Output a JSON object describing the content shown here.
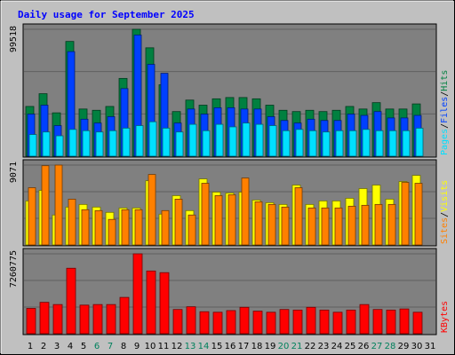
{
  "title": "Daily usage for September 2025",
  "colors": {
    "background": "#c0c0c0",
    "panel": "#808080",
    "title": "#0000ff",
    "hits": "#008040",
    "files": "#0040ff",
    "pages": "#00e0ff",
    "visits": "#ffff00",
    "sites": "#ff8000",
    "kbytes": "#ff0000",
    "weekday_label": "#000000",
    "weekend_label": "#00805c"
  },
  "chart_data": [
    {
      "type": "bar",
      "name": "hits-files-pages",
      "ymax_label": "99518",
      "ymax": 99518,
      "legend": [
        "Pages",
        "/",
        "Files",
        "/",
        "Hits"
      ],
      "legend_colors": [
        "#00e0ff",
        "#000000",
        "#0040ff",
        "#000000",
        "#008040"
      ],
      "series": [
        {
          "name": "Hits",
          "values": [
            39000,
            49000,
            34000,
            90000,
            37000,
            36000,
            39000,
            61000,
            99518,
            85000,
            56000,
            35000,
            44000,
            40000,
            45000,
            46000,
            46000,
            45000,
            40000,
            36000,
            35000,
            36000,
            35000,
            36000,
            39000,
            37000,
            42000,
            37000,
            37000,
            41000
          ]
        },
        {
          "name": "Files",
          "values": [
            33000,
            40000,
            24000,
            82000,
            29000,
            26000,
            31000,
            53000,
            95000,
            72000,
            65000,
            26000,
            37000,
            33000,
            38000,
            38000,
            37000,
            37000,
            31000,
            28000,
            26000,
            29000,
            28000,
            28000,
            33000,
            32000,
            35000,
            30000,
            30000,
            32000
          ]
        },
        {
          "name": "Pages",
          "values": [
            17000,
            19000,
            16000,
            21000,
            20000,
            19000,
            20000,
            22000,
            24000,
            27000,
            22000,
            19000,
            25000,
            20000,
            25000,
            23000,
            26000,
            25000,
            24000,
            20000,
            21000,
            20000,
            19000,
            20000,
            20000,
            21000,
            20000,
            20000,
            20000,
            22000
          ]
        }
      ]
    },
    {
      "type": "bar",
      "name": "visits-sites",
      "ymax_label": "9071",
      "ymax": 9071,
      "legend": [
        "Sites",
        "/",
        "Visits"
      ],
      "legend_colors": [
        "#ff8000",
        "#000000",
        "#ffff00"
      ],
      "series": [
        {
          "name": "Visits",
          "values": [
            5000,
            6200,
            3400,
            4300,
            4600,
            4300,
            3700,
            4200,
            4200,
            7300,
            3500,
            5600,
            3900,
            7500,
            6000,
            5900,
            6000,
            5100,
            4800,
            4600,
            6800,
            4600,
            5000,
            5000,
            5300,
            6400,
            6800,
            5200,
            7200,
            7900
          ]
        },
        {
          "name": "Sites",
          "values": [
            6500,
            9000,
            9071,
            5200,
            4000,
            3900,
            2900,
            4000,
            4000,
            8000,
            3900,
            5200,
            3400,
            7000,
            5600,
            5700,
            7600,
            4900,
            4600,
            4300,
            6500,
            4200,
            4200,
            4200,
            4400,
            4500,
            4600,
            4600,
            7100,
            7000
          ]
        }
      ]
    },
    {
      "type": "bar",
      "name": "kbytes",
      "ymax_label": "7260775",
      "ymax": 7260775,
      "legend": [
        "KBytes"
      ],
      "legend_colors": [
        "#ff0000"
      ],
      "series": [
        {
          "name": "KBytes",
          "values": [
            2300000,
            2850000,
            2650000,
            5950000,
            2600000,
            2650000,
            2650000,
            3300000,
            7260775,
            5700000,
            5550000,
            2200000,
            2450000,
            2000000,
            1950000,
            2100000,
            2400000,
            2050000,
            1950000,
            2200000,
            2150000,
            2400000,
            2150000,
            1950000,
            2150000,
            2650000,
            2200000,
            2150000,
            2250000,
            1950000
          ]
        }
      ]
    }
  ],
  "x_labels": [
    "1",
    "2",
    "3",
    "4",
    "5",
    "6",
    "7",
    "8",
    "9",
    "10",
    "11",
    "12",
    "13",
    "14",
    "15",
    "16",
    "17",
    "18",
    "19",
    "20",
    "21",
    "22",
    "23",
    "24",
    "25",
    "26",
    "27",
    "28",
    "29",
    "30",
    "31"
  ],
  "weekend_days": [
    6,
    7,
    13,
    14,
    20,
    21,
    27,
    28
  ]
}
